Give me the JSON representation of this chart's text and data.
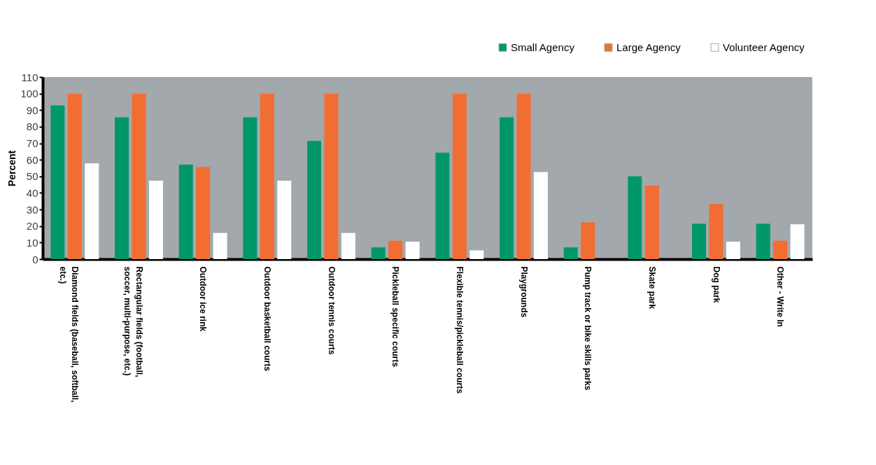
{
  "chart_data": {
    "type": "bar",
    "ylabel": "Percent",
    "categories": [
      "Diamond fields (baseball, softball, etc.)",
      "Rectangular fields (football, soccer, multi-purpose, etc.)",
      "Outdoor ice rink",
      "Outdoor basketball courts",
      "Outdoor tennis courts",
      "Pickleball specific courts",
      "Flexible tennis/pickleball courts",
      "Playgrounds",
      "Pump track or bike skills parks",
      "Skate park",
      "Dog park",
      "Other - Write In"
    ],
    "series": [
      {
        "name": "Small Agency",
        "color": "#009869",
        "values": [
          92.9,
          85.7,
          57.1,
          85.7,
          71.4,
          7.1,
          64.3,
          85.7,
          7.1,
          50,
          21.4,
          21.4
        ]
      },
      {
        "name": "Large Agency",
        "color": "#f26d32",
        "values": [
          100,
          100,
          55.6,
          100,
          100,
          11.1,
          100,
          100,
          22.2,
          44.4,
          33.3,
          11.1
        ]
      },
      {
        "name": "Volunteer Agency",
        "color": "#ffffff",
        "values": [
          57.9,
          47.4,
          15.8,
          47.4,
          15.8,
          10.5,
          5.3,
          52.6,
          0,
          0,
          10.5,
          21.1
        ]
      }
    ],
    "ylim": [
      0,
      110
    ],
    "yticks": [
      0,
      10,
      20,
      30,
      40,
      50,
      60,
      70,
      80,
      90,
      100,
      110
    ],
    "grid": false,
    "legend": "top right"
  }
}
